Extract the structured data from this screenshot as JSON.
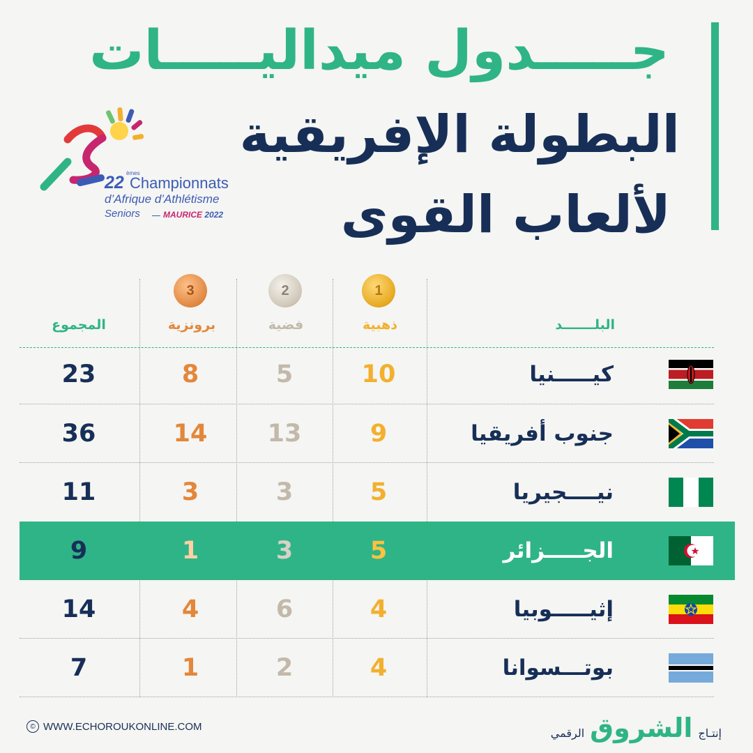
{
  "header": {
    "title_line1": "جـــــدول ميداليـــــات",
    "title_line2": "البطولة الإفريقية",
    "title_line3": "لألعاب القوى"
  },
  "logo": {
    "edition": "22",
    "edition_suffix": "èmes",
    "line1": "Championnats",
    "line2": "d’Afrique d’Athlétisme",
    "line3": "Seniors",
    "place": "MAURICE",
    "year": "2022"
  },
  "table": {
    "columns": {
      "country": "البلـــــــد",
      "gold": "ذهبية",
      "silver": "فضية",
      "bronze": "برونزية",
      "total": "المجموع"
    },
    "medal_numbers": {
      "gold": "1",
      "silver": "2",
      "bronze": "3"
    },
    "rows": [
      {
        "country": "كيـــــنيا",
        "flag": "kenya-flag-icon",
        "gold": "10",
        "silver": "5",
        "bronze": "8",
        "total": "23"
      },
      {
        "country": "جنوب أفريقيا",
        "flag": "south-africa-flag-icon",
        "gold": "9",
        "silver": "13",
        "bronze": "14",
        "total": "36"
      },
      {
        "country": "نيــــجيريا",
        "flag": "nigeria-flag-icon",
        "gold": "5",
        "silver": "3",
        "bronze": "3",
        "total": "11"
      },
      {
        "country": "الجـــــزائر",
        "flag": "algeria-flag-icon",
        "gold": "5",
        "silver": "3",
        "bronze": "1",
        "total": "9",
        "highlighted": true
      },
      {
        "country": "إثيـــــوبيا",
        "flag": "ethiopia-flag-icon",
        "gold": "4",
        "silver": "6",
        "bronze": "4",
        "total": "14"
      },
      {
        "country": "بوتـــسوانا",
        "flag": "botswana-flag-icon",
        "gold": "4",
        "silver": "2",
        "bronze": "1",
        "total": "7"
      }
    ]
  },
  "footer": {
    "website": "WWW.ECHOROUKONLINE.COM",
    "production_label": "إنتـاج",
    "brand": "الشروق",
    "digital_label": "الرقمي"
  },
  "colors": {
    "accent_green": "#2fb487",
    "navy": "#172f57",
    "gold": "#f2b02e",
    "silver": "#c2b9aa",
    "bronze": "#e3873a"
  }
}
